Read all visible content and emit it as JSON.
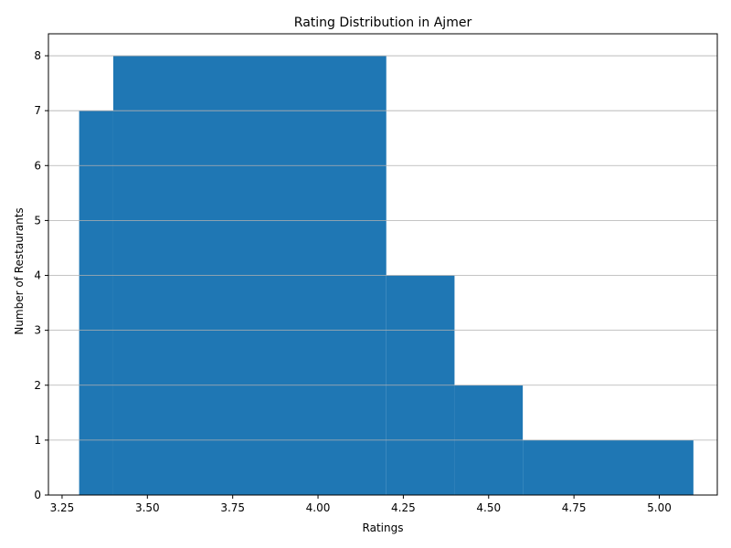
{
  "chart_data": {
    "type": "bar",
    "title": "Rating Distribution in Ajmer",
    "xlabel": "Ratings",
    "ylabel": "Number of Restaurants",
    "xlim": [
      3.21,
      5.17
    ],
    "ylim": [
      0,
      8.4
    ],
    "grid": "y",
    "bar_color": "#1f77b4",
    "grid_color": "#b0b0b0",
    "x_ticks": [
      "3.25",
      "3.50",
      "3.75",
      "4.00",
      "4.25",
      "4.50",
      "4.75",
      "5.00"
    ],
    "x_tick_values": [
      3.25,
      3.5,
      3.75,
      4.0,
      4.25,
      4.5,
      4.75,
      5.0
    ],
    "y_ticks": [
      "0",
      "1",
      "2",
      "3",
      "4",
      "5",
      "6",
      "7",
      "8"
    ],
    "y_tick_values": [
      0,
      1,
      2,
      3,
      4,
      5,
      6,
      7,
      8
    ],
    "bars": [
      {
        "x0": 3.3,
        "x1": 3.4,
        "value": 7
      },
      {
        "x0": 3.4,
        "x1": 4.2,
        "value": 8
      },
      {
        "x0": 4.2,
        "x1": 4.4,
        "value": 4
      },
      {
        "x0": 4.4,
        "x1": 4.6,
        "value": 2
      },
      {
        "x0": 4.6,
        "x1": 5.1,
        "value": 1
      }
    ]
  }
}
